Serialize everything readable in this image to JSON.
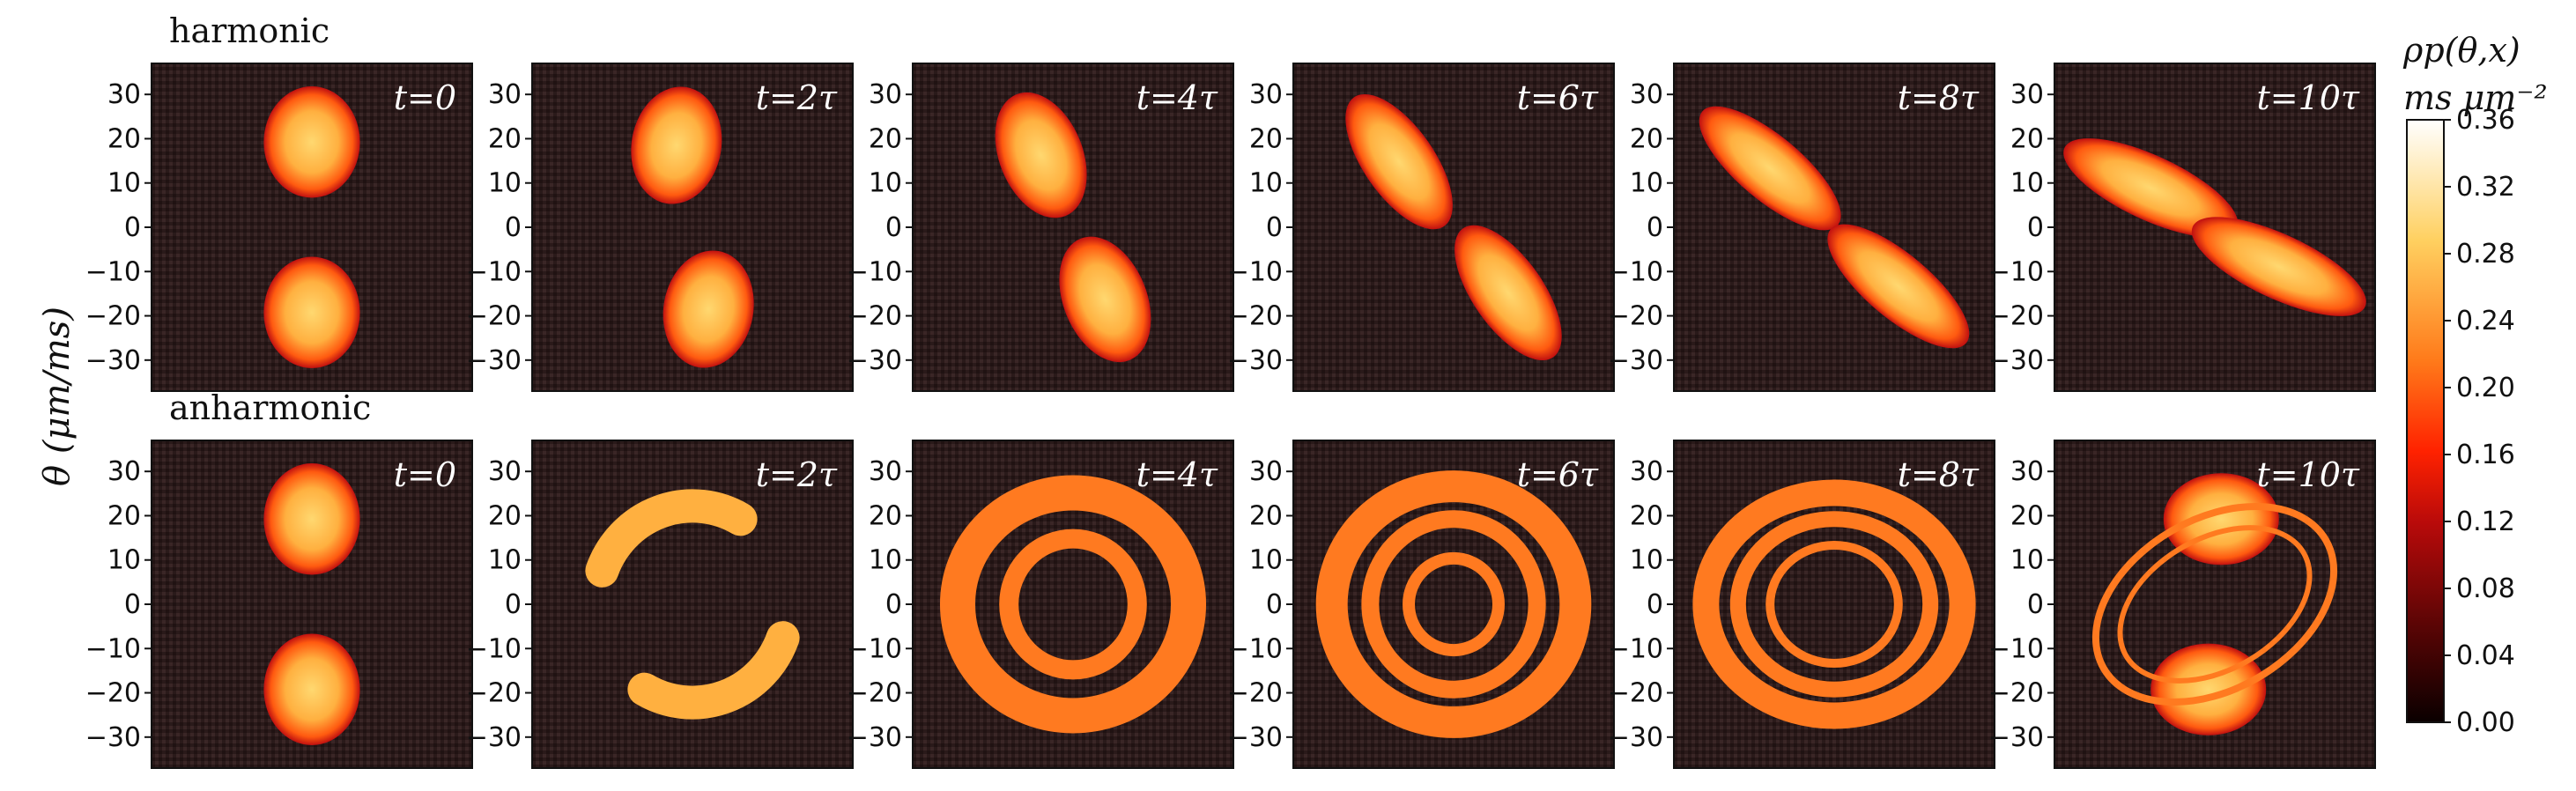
{
  "chart_data": {
    "type": "heatmap",
    "rows": [
      {
        "label": "harmonic",
        "panels": [
          {
            "time": "t=0"
          },
          {
            "time": "t=2τ"
          },
          {
            "time": "t=4τ"
          },
          {
            "time": "t=6τ"
          },
          {
            "time": "t=8τ"
          },
          {
            "time": "t=10τ"
          }
        ]
      },
      {
        "label": "anharmonic",
        "panels": [
          {
            "time": "t=0"
          },
          {
            "time": "t=2τ"
          },
          {
            "time": "t=4τ"
          },
          {
            "time": "t=6τ"
          },
          {
            "time": "t=8τ"
          },
          {
            "time": "t=10τ"
          }
        ]
      }
    ],
    "ylabel": "θ (μm/ms)",
    "yticks": [
      30,
      20,
      10,
      0,
      -10,
      -20,
      -30
    ],
    "ylim": [
      -37,
      37
    ],
    "colorbar": {
      "label": "ρp(θ,x)",
      "unit": "ms μm⁻²",
      "range": [
        0,
        0.36
      ],
      "ticks": [
        "0.36",
        "0.32",
        "0.28",
        "0.24",
        "0.20",
        "0.16",
        "0.12",
        "0.08",
        "0.04",
        "0.00"
      ],
      "colors": [
        "#0a0000",
        "#5a0505",
        "#b80a0a",
        "#ff2200",
        "#ff7a1a",
        "#ffd060",
        "#ffffff"
      ]
    },
    "panel_background": "#2a1a1a"
  }
}
